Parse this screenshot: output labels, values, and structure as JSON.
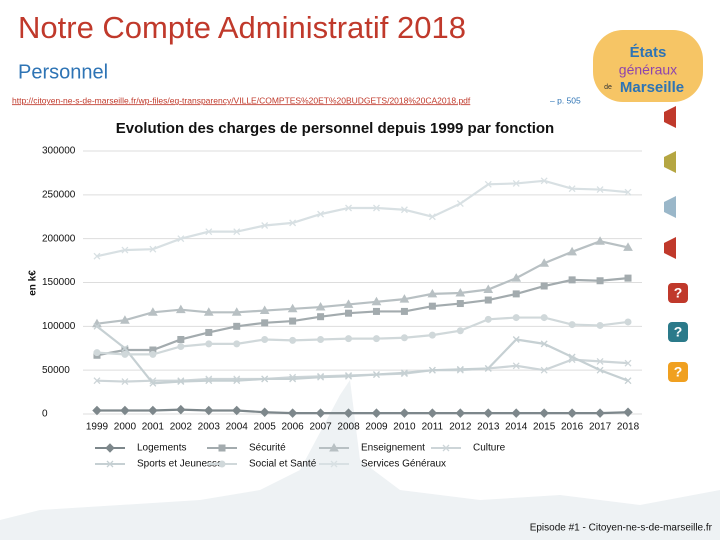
{
  "header": {
    "title": "Notre Compte Administratif 2018",
    "subtitle": "Personnel",
    "source_url": "http://citoyen-ne-s-de-marseille.fr/wp-files/eg-transparency/VILLE/COMPTES%20ET%20BUDGETS/2018%20CA2018.pdf",
    "source_page": "– p. 505"
  },
  "logo": {
    "line1": "États",
    "line2": "généraux",
    "line3": "de",
    "line4": "Marseille"
  },
  "help_icons": [
    "?",
    "?",
    "?"
  ],
  "footer": "Episode #1 - Citoyen-ne-s-de-marseille.fr",
  "chart_data": {
    "type": "line",
    "title": "Evolution des charges de personnel depuis 1999 par fonction",
    "y_label": "en k€",
    "categories": [
      "1999",
      "2000",
      "2001",
      "2002",
      "2003",
      "2004",
      "2005",
      "2006",
      "2007",
      "2008",
      "2009",
      "2010",
      "2011",
      "2012",
      "2013",
      "2014",
      "2015",
      "2016",
      "2017",
      "2018"
    ],
    "ylim": [
      0,
      300000
    ],
    "yticks": [
      0,
      50000,
      100000,
      150000,
      200000,
      250000,
      300000
    ],
    "grid": true,
    "series": [
      {
        "name": "Logements",
        "color": "#7d878b",
        "marker": "diamond",
        "values": [
          4000,
          4000,
          4000,
          5000,
          4000,
          4000,
          2000,
          1000,
          1000,
          1000,
          1000,
          1000,
          1000,
          1000,
          1000,
          1000,
          1000,
          1000,
          1000,
          2000
        ]
      },
      {
        "name": "Sécurité",
        "color": "#a3abae",
        "marker": "square",
        "values": [
          67000,
          73000,
          73000,
          85000,
          93000,
          100000,
          104000,
          106000,
          111000,
          115000,
          117000,
          117000,
          123000,
          126000,
          130000,
          137000,
          146000,
          153000,
          152000,
          155000
        ]
      },
      {
        "name": "Enseignement",
        "color": "#b8c0c3",
        "marker": "triangle",
        "values": [
          103000,
          107000,
          116000,
          119000,
          116000,
          116000,
          118000,
          120000,
          122000,
          125000,
          128000,
          131000,
          137000,
          138000,
          142000,
          155000,
          172000,
          185000,
          197000,
          190000
        ]
      },
      {
        "name": "Culture",
        "color": "#cdd5d8",
        "marker": "x",
        "values": [
          38000,
          37000,
          38000,
          38000,
          40000,
          40000,
          40000,
          42000,
          43000,
          44000,
          45000,
          46000,
          50000,
          50000,
          52000,
          55000,
          50000,
          62000,
          60000,
          58000
        ]
      },
      {
        "name": "Sports et Jeunesse",
        "color": "#c6d0d3",
        "marker": "x",
        "values": [
          100000,
          75000,
          35000,
          37000,
          38000,
          38000,
          40000,
          40000,
          42000,
          43000,
          45000,
          47000,
          50000,
          51000,
          52000,
          85000,
          80000,
          65000,
          50000,
          38000
        ]
      },
      {
        "name": "Social et Santé",
        "color": "#d0d8da",
        "marker": "circle",
        "values": [
          70000,
          68000,
          68000,
          77000,
          80000,
          80000,
          85000,
          84000,
          85000,
          86000,
          86000,
          87000,
          90000,
          95000,
          108000,
          110000,
          110000,
          102000,
          101000,
          105000
        ]
      },
      {
        "name": "Services Généraux",
        "color": "#d8e0e3",
        "marker": "x",
        "values": [
          180000,
          187000,
          188000,
          200000,
          208000,
          208000,
          215000,
          218000,
          228000,
          235000,
          235000,
          233000,
          225000,
          240000,
          262000,
          263000,
          266000,
          257000,
          256000,
          253000
        ]
      }
    ]
  }
}
